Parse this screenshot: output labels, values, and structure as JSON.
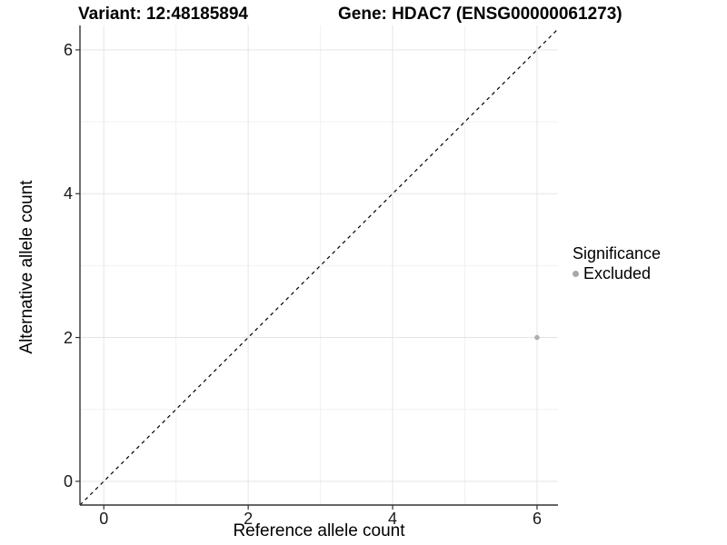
{
  "titles": {
    "variant": "Variant: 12:48185894",
    "gene": "Gene: HDAC7 (ENSG00000061273)"
  },
  "axes": {
    "x_label": "Reference allele count",
    "y_label": "Alternative allele count"
  },
  "legend": {
    "title": "Significance",
    "items": [
      {
        "label": "Excluded",
        "color": "#a8a8a8"
      }
    ]
  },
  "colors": {
    "background": "#ffffff",
    "grid_major": "#e5e5e5",
    "grid_minor": "#f1f1f1",
    "axis_line": "#333333",
    "tick_mark": "#333333",
    "text": "#000000",
    "point": "#b0b0b0",
    "identity_line": "#000000"
  },
  "chart_data": {
    "type": "scatter",
    "title": "Variant: 12:48185894   Gene: HDAC7 (ENSG00000061273)",
    "xlabel": "Reference allele count",
    "ylabel": "Alternative allele count",
    "xlim": [
      -0.33,
      6.29
    ],
    "ylim": [
      -0.33,
      6.34
    ],
    "x_ticks": [
      0,
      2,
      4,
      6
    ],
    "y_ticks": [
      0,
      2,
      4,
      6
    ],
    "x_minor_ticks": [
      1,
      3,
      5
    ],
    "y_minor_ticks": [
      1,
      3,
      5
    ],
    "grid": true,
    "legend_position": "right",
    "series": [
      {
        "name": "Excluded",
        "color": "#b0b0b0",
        "points": [
          {
            "x": 6,
            "y": 2
          }
        ]
      }
    ],
    "reference_line": {
      "kind": "identity",
      "slope": 1,
      "intercept": 0,
      "style": "dashed",
      "color": "#000000"
    }
  }
}
